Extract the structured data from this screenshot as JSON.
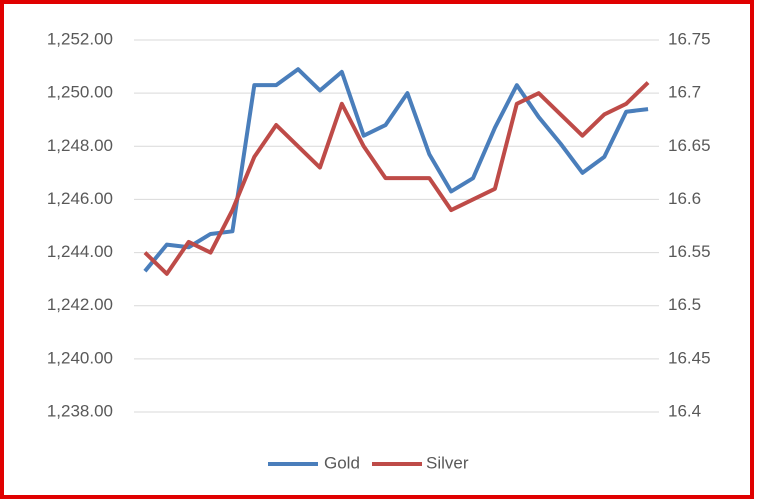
{
  "chart_data": {
    "type": "line",
    "categories": [
      null,
      null,
      null,
      null,
      null,
      null,
      null,
      null,
      null,
      null,
      null,
      null,
      null,
      null,
      null,
      null,
      null,
      null,
      null,
      null,
      null,
      null,
      null,
      null
    ],
    "series": [
      {
        "name": "Gold",
        "color": "#4a7ebb",
        "axis": "y",
        "values": [
          1243.3,
          1244.3,
          1244.2,
          1244.7,
          1244.8,
          1250.3,
          1250.3,
          1250.9,
          1250.1,
          1250.8,
          1248.4,
          1248.8,
          1250.0,
          1247.7,
          1246.3,
          1246.8,
          1248.7,
          1250.3,
          1249.1,
          1248.1,
          1247.0,
          1247.6,
          1249.3,
          1249.4
        ]
      },
      {
        "name": "Silver",
        "color": "#be4b48",
        "axis": "y2",
        "values": [
          16.55,
          16.53,
          16.56,
          16.55,
          16.59,
          16.64,
          16.67,
          16.65,
          16.63,
          16.69,
          16.65,
          16.62,
          16.62,
          16.62,
          16.59,
          16.6,
          16.61,
          16.69,
          16.7,
          16.68,
          16.66,
          16.68,
          16.69,
          16.71
        ]
      }
    ],
    "ylim": [
      1238,
      1252
    ],
    "yticks": [
      {
        "value": 1238,
        "label": "1,238.00"
      },
      {
        "value": 1240,
        "label": "1,240.00"
      },
      {
        "value": 1242,
        "label": "1,242.00"
      },
      {
        "value": 1244,
        "label": "1,244.00"
      },
      {
        "value": 1246,
        "label": "1,246.00"
      },
      {
        "value": 1248,
        "label": "1,248.00"
      },
      {
        "value": 1250,
        "label": "1,250.00"
      },
      {
        "value": 1252,
        "label": "1,252.00"
      }
    ],
    "y2lim": [
      16.4,
      16.75
    ],
    "y2ticks": [
      16.4,
      16.45,
      16.5,
      16.55,
      16.6,
      16.65,
      16.7,
      16.75
    ],
    "grid": true,
    "legend": "bottom"
  }
}
